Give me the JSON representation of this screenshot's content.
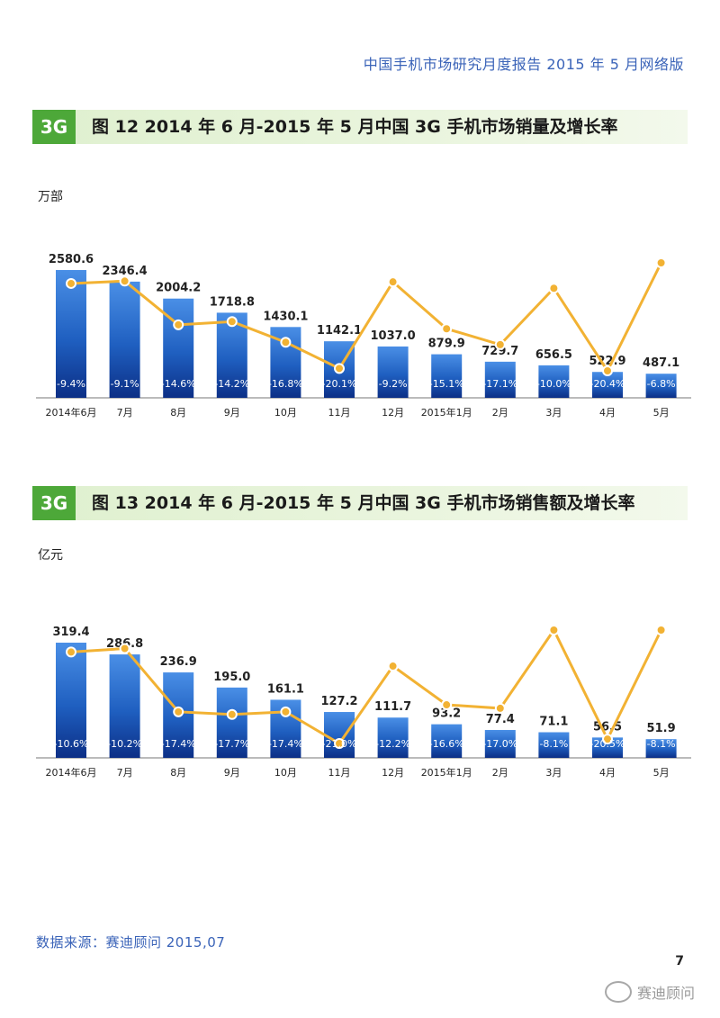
{
  "header": {
    "report_title": "中国手机市场研究月度报告   2015 年 5 月网络版"
  },
  "chart_data": [
    {
      "type": "bar",
      "badge": "3G",
      "title": "图 12   2014 年 6 月-2015 年 5 月中国 3G 手机市场销量及增长率",
      "unit": "万部",
      "categories": [
        "2014年6月",
        "7月",
        "8月",
        "9月",
        "10月",
        "11月",
        "12月",
        "2015年1月",
        "2月",
        "3月",
        "4月",
        "5月"
      ],
      "series": [
        {
          "values": [
            2580.6,
            2346.4,
            2004.2,
            1718.8,
            1430.1,
            1142.1,
            1037.0,
            879.9,
            729.7,
            656.5,
            522.9,
            487.1
          ],
          "labels": [
            "2580.6",
            "2346.4",
            "2004.2",
            "1718.8",
            "1430.1",
            "1142.1",
            "1037.0",
            "879.9",
            "729.7",
            "656.5",
            "522.9",
            "487.1"
          ]
        },
        {
          "values": [
            -9.4,
            -9.1,
            -14.6,
            -14.2,
            -16.8,
            -20.1,
            -9.2,
            -15.1,
            -17.1,
            -10.0,
            -20.4,
            -6.8
          ],
          "labels": [
            "-9.4%",
            "-9.1%",
            "-14.6%",
            "-14.2%",
            "-16.8%",
            "-20.1%",
            "-9.2%",
            "-15.1%",
            "-17.1%",
            "-10.0%",
            "-20.4%",
            "-6.8%"
          ]
        }
      ],
      "colors": {
        "bar": "#1f5fc0",
        "line": "#f2b233"
      }
    },
    {
      "type": "bar",
      "badge": "3G",
      "title": "图 13   2014 年 6 月-2015 年 5 月中国 3G 手机市场销售额及增长率",
      "unit": "亿元",
      "categories": [
        "2014年6月",
        "7月",
        "8月",
        "9月",
        "10月",
        "11月",
        "12月",
        "2015年1月",
        "2月",
        "3月",
        "4月",
        "5月"
      ],
      "series": [
        {
          "values": [
            319.4,
            286.8,
            236.9,
            195.0,
            161.1,
            127.2,
            111.7,
            93.2,
            77.4,
            71.1,
            56.5,
            51.9
          ],
          "labels": [
            "319.4",
            "286.8",
            "236.9",
            "195.0",
            "161.1",
            "127.2",
            "111.7",
            "93.2",
            "77.4",
            "71.1",
            "56.5",
            "51.9"
          ]
        },
        {
          "values": [
            -10.6,
            -10.2,
            -17.4,
            -17.7,
            -17.4,
            -21.0,
            -12.2,
            -16.6,
            -17.0,
            -8.1,
            -20.5,
            -8.1
          ],
          "labels": [
            "-10.6%",
            "-10.2%",
            "-17.4%",
            "-17.7%",
            "-17.4%",
            "-21.0%",
            "-12.2%",
            "-16.6%",
            "-17.0%",
            "-8.1%",
            "-20.5%",
            "-8.1%"
          ]
        }
      ],
      "colors": {
        "bar": "#1f5fc0",
        "line": "#f2b233"
      }
    }
  ],
  "footer": {
    "source": "数据来源：赛迪顾问 2015,07",
    "page_number": "7",
    "watermark": "赛迪顾问"
  }
}
